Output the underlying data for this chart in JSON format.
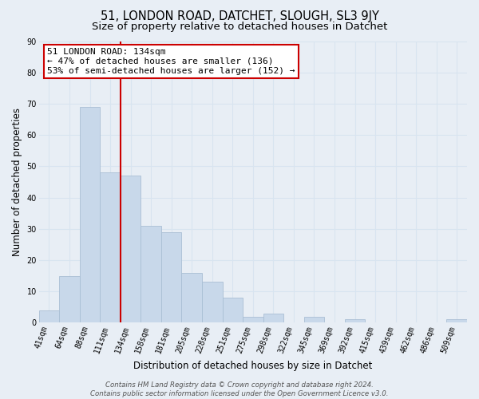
{
  "title": "51, LONDON ROAD, DATCHET, SLOUGH, SL3 9JY",
  "subtitle": "Size of property relative to detached houses in Datchet",
  "xlabel": "Distribution of detached houses by size in Datchet",
  "ylabel": "Number of detached properties",
  "bar_labels": [
    "41sqm",
    "64sqm",
    "88sqm",
    "111sqm",
    "134sqm",
    "158sqm",
    "181sqm",
    "205sqm",
    "228sqm",
    "251sqm",
    "275sqm",
    "298sqm",
    "322sqm",
    "345sqm",
    "369sqm",
    "392sqm",
    "415sqm",
    "439sqm",
    "462sqm",
    "486sqm",
    "509sqm"
  ],
  "bar_values": [
    4,
    15,
    69,
    48,
    47,
    31,
    29,
    16,
    13,
    8,
    2,
    3,
    0,
    2,
    0,
    1,
    0,
    0,
    0,
    0,
    1
  ],
  "bar_color": "#c8d8ea",
  "bar_edge_color": "#aabfd4",
  "vline_x_index": 3.5,
  "vline_color": "#cc0000",
  "ylim": [
    0,
    90
  ],
  "yticks": [
    0,
    10,
    20,
    30,
    40,
    50,
    60,
    70,
    80,
    90
  ],
  "annotation_text": "51 LONDON ROAD: 134sqm\n← 47% of detached houses are smaller (136)\n53% of semi-detached houses are larger (152) →",
  "annotation_box_color": "#ffffff",
  "annotation_box_edge": "#cc0000",
  "footer_line1": "Contains HM Land Registry data © Crown copyright and database right 2024.",
  "footer_line2": "Contains public sector information licensed under the Open Government Licence v3.0.",
  "bg_color": "#e8eef5",
  "grid_color": "#d8e4f0",
  "title_fontsize": 10.5,
  "subtitle_fontsize": 9.5,
  "tick_fontsize": 7,
  "ylabel_fontsize": 8.5,
  "xlabel_fontsize": 8.5,
  "footer_fontsize": 6.2
}
